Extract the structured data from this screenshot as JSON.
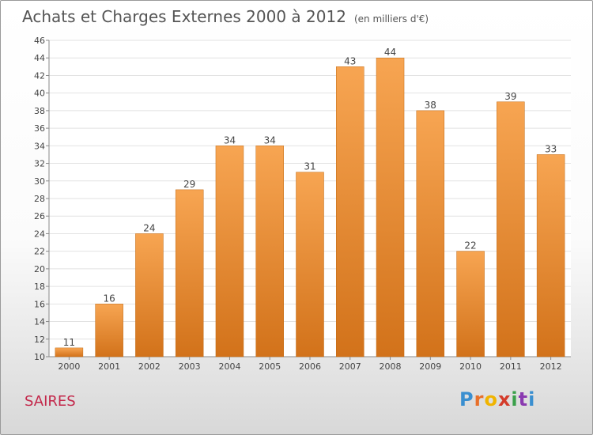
{
  "header": {
    "title": "Achats et Charges Externes 2000 à 2012",
    "subtitle": "(en milliers d'€)"
  },
  "place": "SAIRES",
  "logo": {
    "text": "Proxiti"
  },
  "colors": {
    "bar_top": "#f7a552",
    "bar_bottom": "#d2721a",
    "place_text": "#c3274a"
  },
  "chart_data": {
    "type": "bar",
    "categories": [
      "2000",
      "2001",
      "2002",
      "2003",
      "2004",
      "2005",
      "2006",
      "2007",
      "2008",
      "2009",
      "2010",
      "2011",
      "2012"
    ],
    "values": [
      11,
      16,
      24,
      29,
      34,
      34,
      31,
      43,
      44,
      38,
      22,
      39,
      33
    ],
    "ylim": [
      10,
      46
    ],
    "yticks": [
      10,
      12,
      14,
      16,
      18,
      20,
      22,
      24,
      26,
      28,
      30,
      32,
      34,
      36,
      38,
      40,
      42,
      44,
      46
    ],
    "grid": true,
    "data_labels": true
  }
}
